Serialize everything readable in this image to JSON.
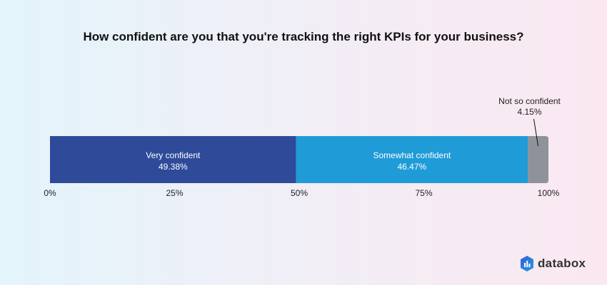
{
  "chart_data": {
    "type": "bar",
    "orientation": "horizontal-stacked-100",
    "title": "How confident are you that you're tracking the right KPIs for your business?",
    "categories": [
      "Very confident",
      "Somewhat confident",
      "Not so confident"
    ],
    "values": [
      49.38,
      46.47,
      4.15
    ],
    "data_labels": [
      "49.38%",
      "46.47%",
      "4.15%"
    ],
    "colors": [
      "#2e4a99",
      "#1f9bd7",
      "#8e939b"
    ],
    "xlim": [
      0,
      100
    ],
    "x_ticks": [
      "0%",
      "25%",
      "50%",
      "75%",
      "100%"
    ],
    "grid": false,
    "legend": "none"
  },
  "brand": {
    "name": "databox"
  }
}
